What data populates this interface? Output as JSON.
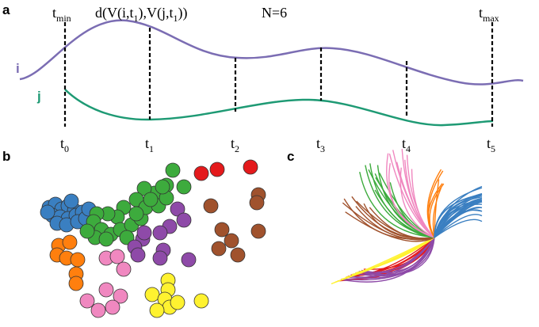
{
  "panels": {
    "a": {
      "letter": "a",
      "curve_i_label": "i",
      "curve_j_label": "j",
      "t_min": {
        "base": "t",
        "sub": "min"
      },
      "t_max": {
        "base": "t",
        "sub": "max"
      },
      "distance_formula": {
        "part1": "d(V(i,t",
        "sub1": "1",
        "part2": "),V(j,t",
        "sub2": "1",
        "part3": "))"
      },
      "n_label": "N=6",
      "ticks": [
        {
          "base": "t",
          "sub": "0"
        },
        {
          "base": "t",
          "sub": "1"
        },
        {
          "base": "t",
          "sub": "2"
        },
        {
          "base": "t",
          "sub": "3"
        },
        {
          "base": "t",
          "sub": "4"
        },
        {
          "base": "t",
          "sub": "5"
        }
      ]
    },
    "b": {
      "letter": "b"
    },
    "c": {
      "letter": "c"
    }
  },
  "colors": {
    "curve_i": "#7b6db3",
    "curve_j": "#1e9a74",
    "blue": "#3a7fc1",
    "orange": "#ff7f0e",
    "green": "#3dab3d",
    "red": "#e41a1c",
    "purple": "#8e4aa8",
    "brown": "#a0522d",
    "pink": "#f088c0",
    "yellow": "#fff230"
  }
}
